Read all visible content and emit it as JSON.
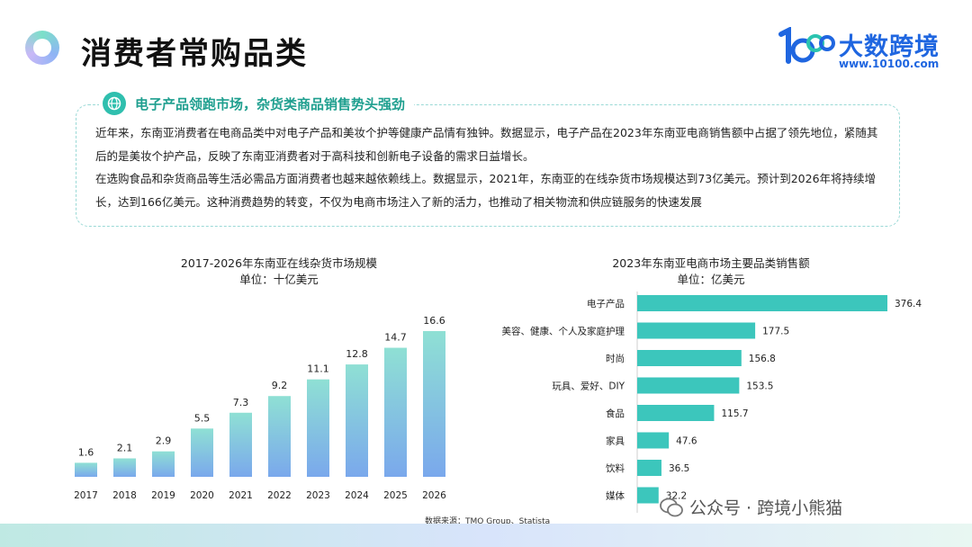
{
  "header": {
    "title": "消费者常购品类",
    "logo_name": "大数跨境",
    "logo_url": "www.10100.com",
    "logo_mark": "10100"
  },
  "info": {
    "tag": "电子产品领跑市场，杂货类商品销售势头强劲",
    "paragraphs": [
      "近年来，东南亚消费者在电商品类中对电子产品和美妆个护等健康产品情有独钟。数据显示，电子产品在2023年东南亚电商销售额中占据了领先地位，紧随其后的是美妆个护产品，反映了东南亚消费者对于高科技和创新电子设备的需求日益增长。",
      "在选购食品和杂货商品等生活必需品方面消费者也越来越依赖线上。数据显示，2021年，东南亚的在线杂货市场规模达到73亿美元。预计到2026年将持续增长，达到166亿美元。这种消费趋势的转变，不仅为电商市场注入了新的活力，也推动了相关物流和供应链服务的快速发展"
    ]
  },
  "chart_data": [
    {
      "type": "bar",
      "title": "2017-2026年东南亚在线杂货市场规模",
      "subtitle": "单位：十亿美元",
      "categories": [
        "2017",
        "2018",
        "2019",
        "2020",
        "2021",
        "2022",
        "2023",
        "2024",
        "2025",
        "2026"
      ],
      "values": [
        1.6,
        2.1,
        2.9,
        5.5,
        7.3,
        9.2,
        11.1,
        12.8,
        14.7,
        16.6
      ],
      "value_labels": [
        "1.6",
        "2.1",
        "2.9",
        "5.5",
        "7.3",
        "9.2",
        "11.1",
        "12.8",
        "14.7",
        "16.6"
      ],
      "ylim": [
        0,
        16.6
      ],
      "orientation": "vertical",
      "grid": false,
      "color_top": "#8fe0d4",
      "color_bottom": "#7aa8ec"
    },
    {
      "type": "bar",
      "title": "2023年东南亚电商市场主要品类销售额",
      "subtitle": "单位：亿美元",
      "categories": [
        "电子产品",
        "美容、健康、个人及家庭护理",
        "时尚",
        "玩具、爱好、DIY",
        "食品",
        "家具",
        "饮料",
        "媒体"
      ],
      "values": [
        376.4,
        177.5,
        156.8,
        153.5,
        115.7,
        47.6,
        36.5,
        32.2
      ],
      "value_labels": [
        "376.4",
        "177.5",
        "156.8",
        "153.5",
        "115.7",
        "47.6",
        "36.5",
        "32.2"
      ],
      "xlim": [
        0,
        376.4
      ],
      "orientation": "horizontal",
      "grid": false,
      "color": "#3cc6bc"
    }
  ],
  "footer": {
    "source": "数据来源：TMO Group、Statista",
    "watermark": "公众号 · 跨境小熊猫"
  }
}
